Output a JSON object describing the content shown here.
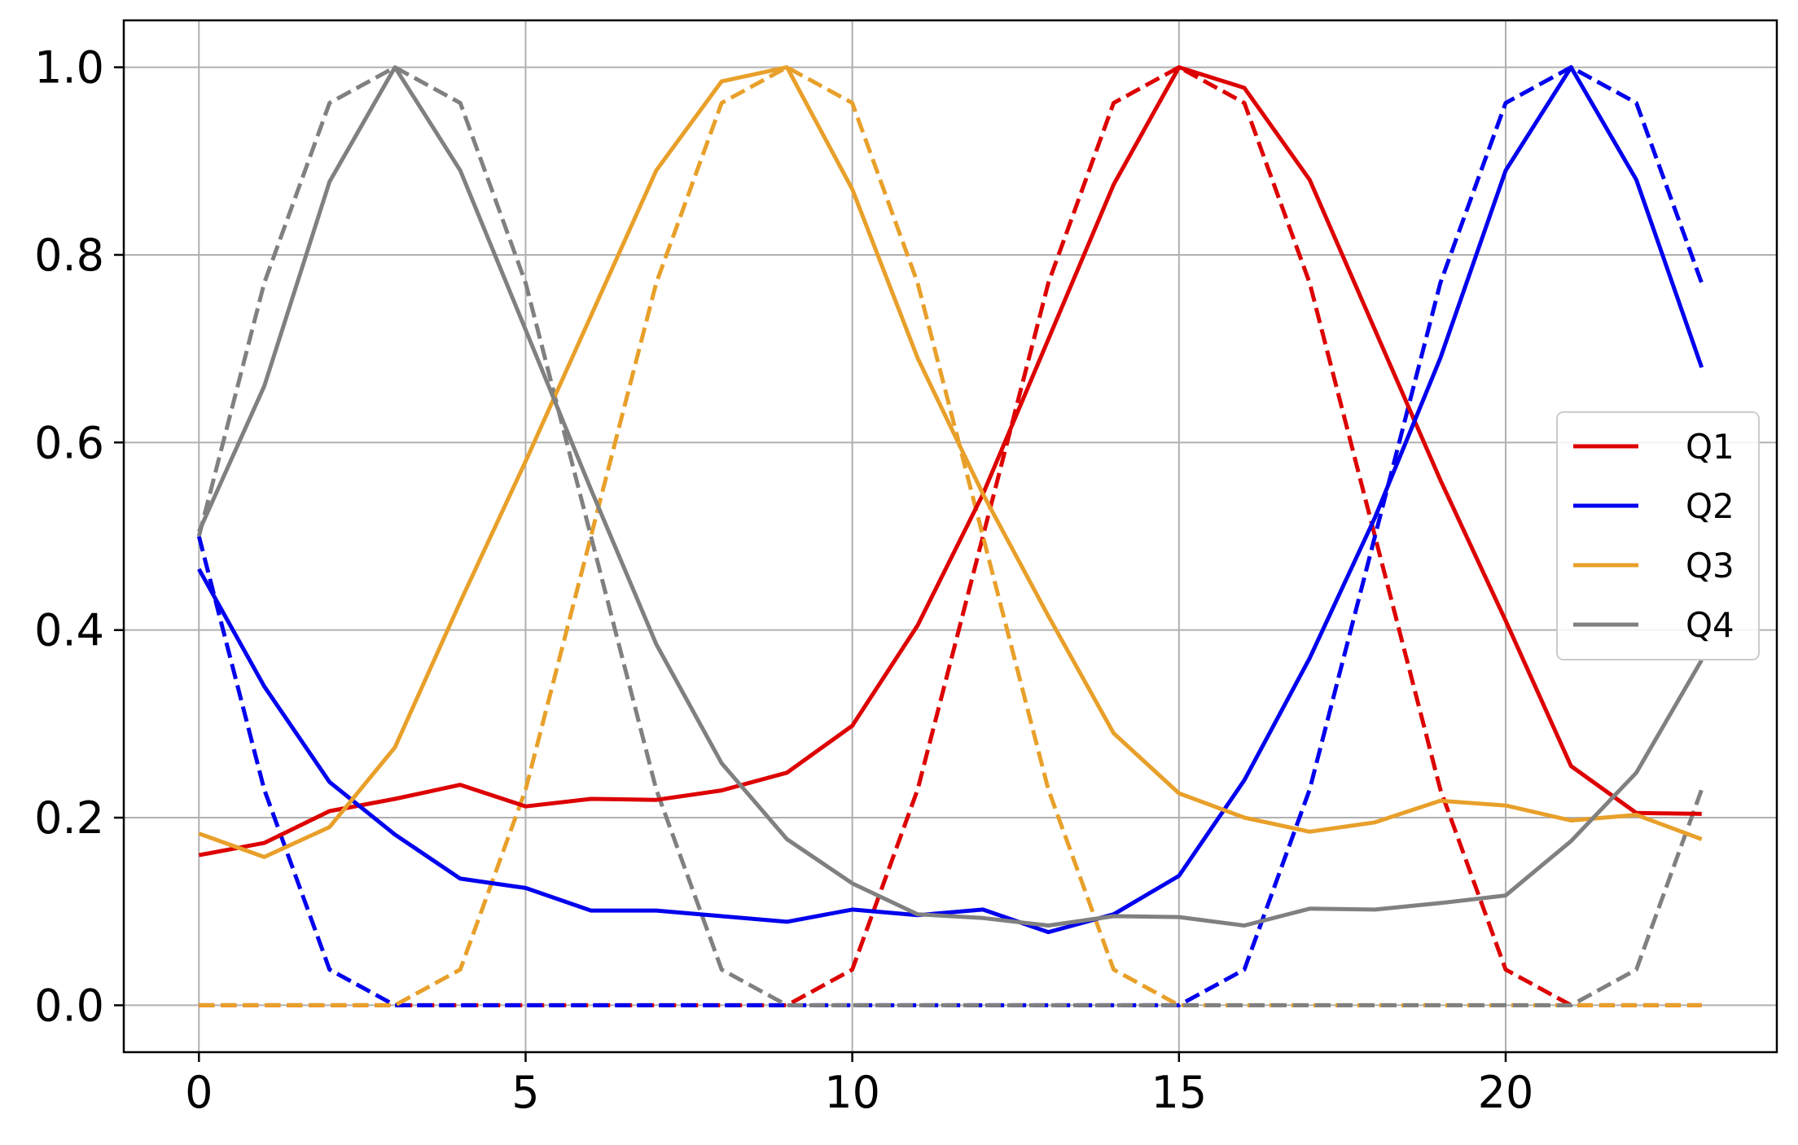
{
  "chart_data": {
    "type": "line",
    "title": "",
    "xlabel": "",
    "ylabel": "",
    "xlim": [
      -1.15,
      24.15
    ],
    "ylim": [
      -0.05,
      1.05
    ],
    "xticks": [
      0,
      5,
      10,
      15,
      20
    ],
    "xtick_labels": [
      "0",
      "5",
      "10",
      "15",
      "20"
    ],
    "yticks": [
      0.0,
      0.2,
      0.4,
      0.6,
      0.8,
      1.0
    ],
    "ytick_labels": [
      "0.0",
      "0.2",
      "0.4",
      "0.6",
      "0.8",
      "1.0"
    ],
    "grid": true,
    "legend_position": "center-right",
    "x": [
      0,
      1,
      2,
      3,
      4,
      5,
      6,
      7,
      8,
      9,
      10,
      11,
      12,
      13,
      14,
      15,
      16,
      17,
      18,
      19,
      20,
      21,
      22,
      23
    ],
    "series": [
      {
        "name": "Q1",
        "color": "#dd0000",
        "style": "solid",
        "values": [
          0.16,
          0.173,
          0.207,
          0.22,
          0.235,
          0.212,
          0.22,
          0.219,
          0.229,
          0.248,
          0.298,
          0.405,
          0.545,
          0.71,
          0.875,
          1.0,
          0.978,
          0.88,
          0.72,
          0.56,
          0.41,
          0.255,
          0.205,
          0.204
        ]
      },
      {
        "name": "Q2",
        "color": "#0000ee",
        "style": "solid",
        "values": [
          0.465,
          0.34,
          0.238,
          0.182,
          0.135,
          0.125,
          0.101,
          0.101,
          0.095,
          0.089,
          0.102,
          0.096,
          0.102,
          0.078,
          0.097,
          0.138,
          0.24,
          0.37,
          0.52,
          0.69,
          0.89,
          1.0,
          0.88,
          0.68
        ]
      },
      {
        "name": "Q3",
        "color": "#e8a02a",
        "style": "solid",
        "values": [
          0.183,
          0.158,
          0.19,
          0.275,
          0.43,
          0.58,
          0.735,
          0.89,
          0.985,
          1.0,
          0.87,
          0.69,
          0.545,
          0.415,
          0.29,
          0.226,
          0.2,
          0.185,
          0.195,
          0.218,
          0.213,
          0.197,
          0.203,
          0.177
        ]
      },
      {
        "name": "Q4",
        "color": "#808080",
        "style": "solid",
        "values": [
          0.505,
          0.66,
          0.878,
          1.0,
          0.89,
          0.72,
          0.55,
          0.385,
          0.258,
          0.177,
          0.13,
          0.097,
          0.093,
          0.085,
          0.095,
          0.094,
          0.085,
          0.103,
          0.102,
          0.109,
          0.117,
          0.175,
          0.248,
          0.368
        ]
      },
      {
        "name": "",
        "color": "#dd0000",
        "style": "dashed",
        "values": [
          0,
          0,
          0,
          0,
          0,
          0,
          0,
          0,
          0,
          0,
          0.038,
          0.23,
          0.5,
          0.77,
          0.962,
          1.0,
          0.962,
          0.77,
          0.5,
          0.23,
          0.038,
          0,
          0,
          0
        ]
      },
      {
        "name": "",
        "color": "#0000ee",
        "style": "dashed",
        "values": [
          0.5,
          0.23,
          0.038,
          0,
          0,
          0,
          0,
          0,
          0,
          0,
          0,
          0,
          0,
          0,
          0,
          0,
          0.038,
          0.23,
          0.5,
          0.77,
          0.962,
          1.0,
          0.962,
          0.77
        ]
      },
      {
        "name": "",
        "color": "#e8a02a",
        "style": "dashed",
        "values": [
          0,
          0,
          0,
          0,
          0.038,
          0.23,
          0.5,
          0.77,
          0.962,
          1.0,
          0.962,
          0.77,
          0.5,
          0.23,
          0.038,
          0,
          0,
          0,
          0,
          0,
          0,
          0,
          0,
          0
        ]
      },
      {
        "name": "",
        "color": "#808080",
        "style": "dashed",
        "values": [
          0.5,
          0.77,
          0.962,
          1.0,
          0.962,
          0.77,
          0.5,
          0.23,
          0.038,
          0,
          0,
          0,
          0,
          0,
          0,
          0,
          0,
          0,
          0,
          0,
          0,
          0,
          0.038,
          0.23
        ]
      }
    ],
    "legend": [
      "Q1",
      "Q2",
      "Q3",
      "Q4"
    ]
  }
}
